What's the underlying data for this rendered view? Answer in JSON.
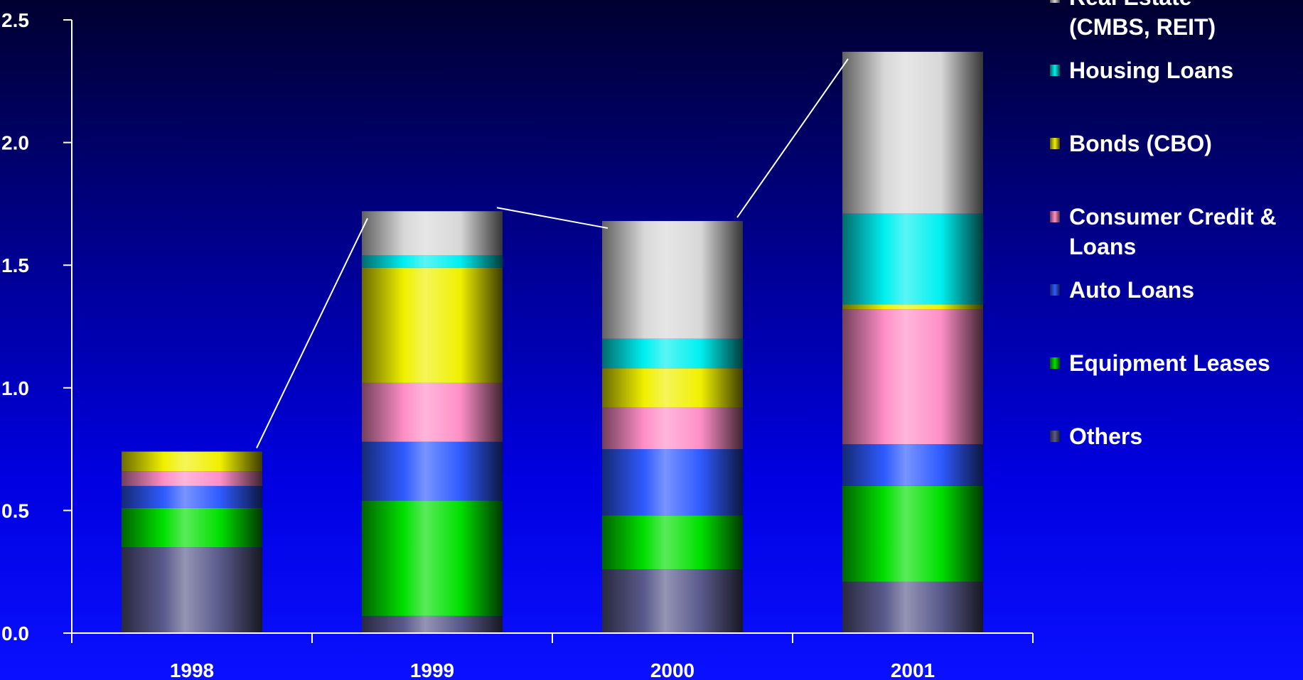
{
  "chart_data": {
    "type": "bar",
    "stacked": true,
    "categories": [
      "1998",
      "1999",
      "2000",
      "2001"
    ],
    "ylim": [
      0,
      2.5
    ],
    "yticks": [
      "0.0",
      "0.5",
      "1.0",
      "1.5",
      "2.0",
      "2.5"
    ],
    "grid": false,
    "legend_position": "right",
    "series": [
      {
        "name": "Others",
        "color": "#5a5a8c",
        "values": [
          0.35,
          0.07,
          0.26,
          0.21
        ]
      },
      {
        "name": "Equipment Leases",
        "color": "#00e000",
        "values": [
          0.16,
          0.47,
          0.22,
          0.39
        ]
      },
      {
        "name": "Auto Loans",
        "color": "#2f5bff",
        "values": [
          0.09,
          0.24,
          0.27,
          0.17
        ]
      },
      {
        "name": "Consumer Credit & Loans",
        "color": "#ff8fc8",
        "values": [
          0.06,
          0.24,
          0.17,
          0.55
        ]
      },
      {
        "name": "Bonds (CBO)",
        "color": "#f0f000",
        "values": [
          0.08,
          0.47,
          0.16,
          0.02
        ]
      },
      {
        "name": "Housing Loans",
        "color": "#00f0f0",
        "values": [
          0.0,
          0.05,
          0.12,
          0.37
        ]
      },
      {
        "name": "Real Estate (CMBS, REIT)",
        "color": "#d8d8d8",
        "values": [
          0.0,
          0.18,
          0.48,
          0.66
        ]
      }
    ],
    "legend": [
      {
        "lines": [
          "Real Estate",
          "(CMBS, REIT)"
        ],
        "color": "#d8d8d8"
      },
      {
        "lines": [
          "Housing Loans"
        ],
        "color": "#00f0f0"
      },
      {
        "lines": [
          "Bonds (CBO)"
        ],
        "color": "#f0f000"
      },
      {
        "lines": [
          "Consumer Credit &",
          "Loans"
        ],
        "color": "#ff8fc8"
      },
      {
        "lines": [
          "Auto Loans"
        ],
        "color": "#2f5bff"
      },
      {
        "lines": [
          "Equipment Leases"
        ],
        "color": "#00e000"
      },
      {
        "lines": [
          "Others"
        ],
        "color": "#5a5a8c"
      }
    ]
  }
}
